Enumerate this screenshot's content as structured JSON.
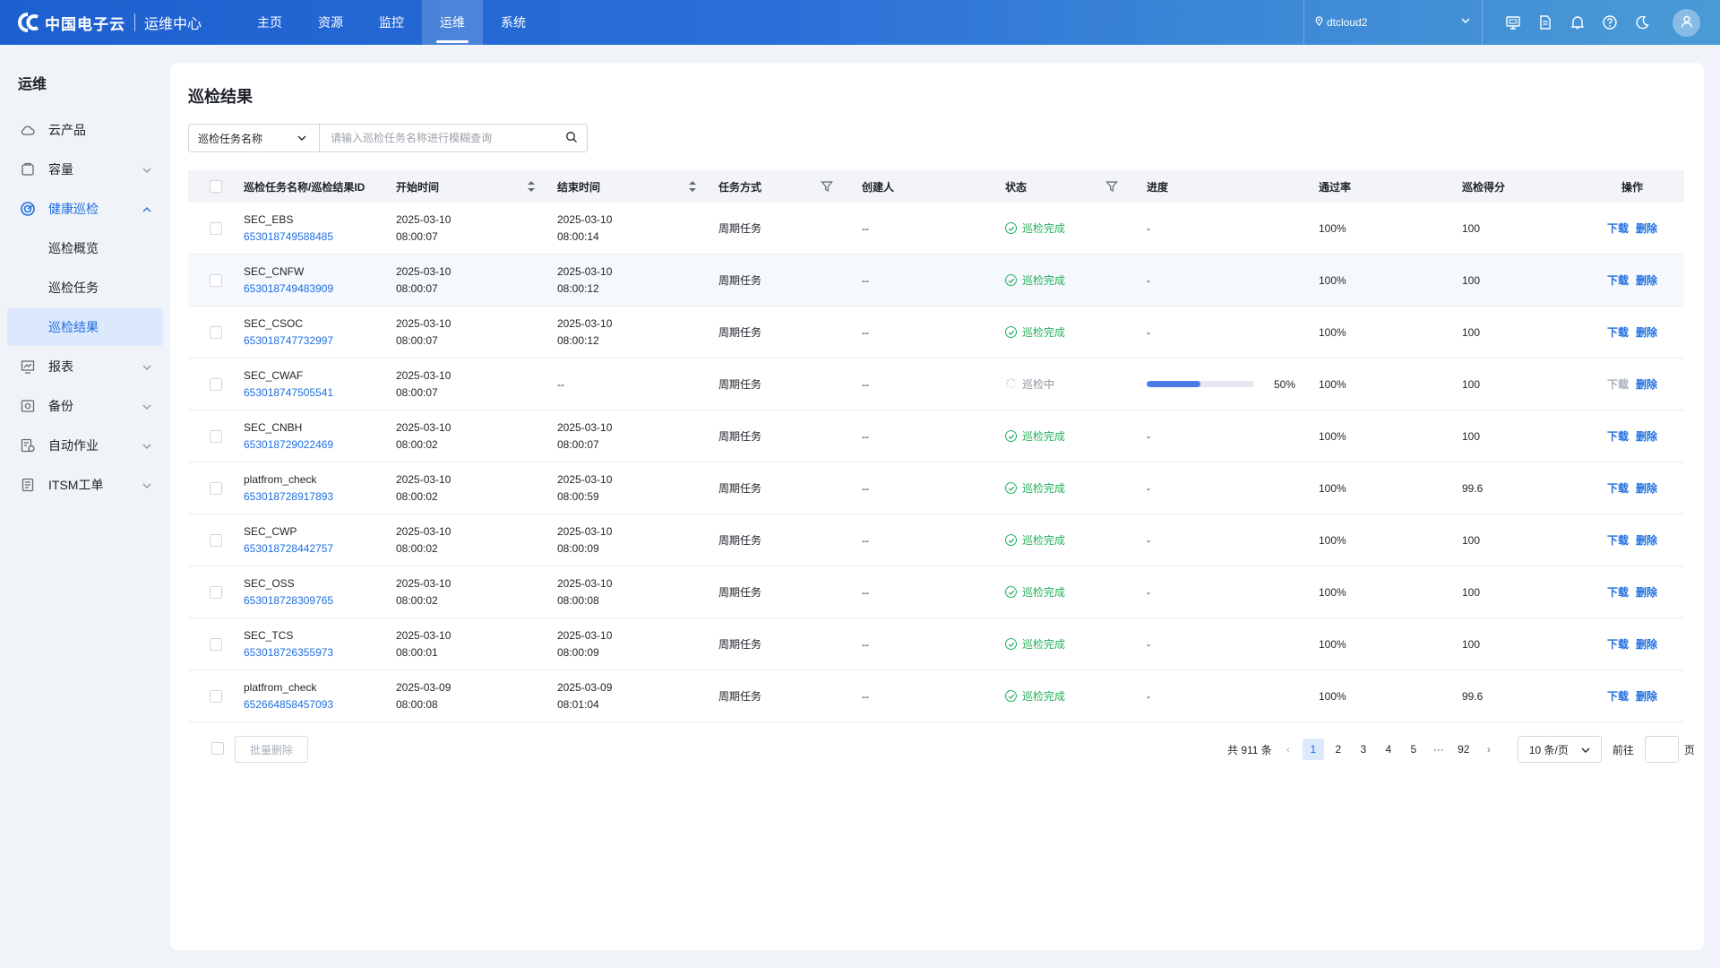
{
  "header": {
    "brand": "中国电子云",
    "subtitle": "运维中心",
    "nav": [
      "主页",
      "资源",
      "监控",
      "运维",
      "系统"
    ],
    "active_nav": 3,
    "region": "dtcloud2"
  },
  "sidebar": {
    "title": "运维",
    "items": [
      {
        "label": "云产品",
        "icon": "cloud-icon",
        "chevron": false
      },
      {
        "label": "容量",
        "icon": "capacity-icon",
        "chevron": true
      },
      {
        "label": "健康巡检",
        "icon": "inspection-icon",
        "chevron": true,
        "open": true
      },
      {
        "label": "报表",
        "icon": "report-icon",
        "chevron": true
      },
      {
        "label": "备份",
        "icon": "backup-icon",
        "chevron": true
      },
      {
        "label": "自动作业",
        "icon": "automation-icon",
        "chevron": true
      },
      {
        "label": "ITSM工单",
        "icon": "ticket-icon",
        "chevron": true
      }
    ],
    "subitems": [
      "巡检概览",
      "巡检任务",
      "巡检结果"
    ],
    "active_sub": 2
  },
  "page": {
    "title": "巡检结果",
    "search_field": "巡检任务名称",
    "search_placeholder": "请输入巡检任务名称进行模糊查询"
  },
  "table": {
    "columns": [
      "巡检任务名称/巡检结果ID",
      "开始时间",
      "结束时间",
      "任务方式",
      "创建人",
      "状态",
      "进度",
      "通过率",
      "巡检得分",
      "操作"
    ],
    "rows": [
      {
        "name": "SEC_EBS",
        "id": "653018749588485",
        "start_date": "2025-03-10",
        "start_time": "08:00:07",
        "end_date": "2025-03-10",
        "end_time": "08:00:14",
        "mode": "周期任务",
        "creator": "--",
        "status": "巡检完成",
        "running": false,
        "progress": "-",
        "pass_rate": "100%",
        "score": "100"
      },
      {
        "name": "SEC_CNFW",
        "id": "653018749483909",
        "start_date": "2025-03-10",
        "start_time": "08:00:07",
        "end_date": "2025-03-10",
        "end_time": "08:00:12",
        "mode": "周期任务",
        "creator": "--",
        "status": "巡检完成",
        "running": false,
        "progress": "-",
        "pass_rate": "100%",
        "score": "100"
      },
      {
        "name": "SEC_CSOC",
        "id": "653018747732997",
        "start_date": "2025-03-10",
        "start_time": "08:00:07",
        "end_date": "2025-03-10",
        "end_time": "08:00:12",
        "mode": "周期任务",
        "creator": "--",
        "status": "巡检完成",
        "running": false,
        "progress": "-",
        "pass_rate": "100%",
        "score": "100"
      },
      {
        "name": "SEC_CWAF",
        "id": "653018747505541",
        "start_date": "2025-03-10",
        "start_time": "08:00:07",
        "end_date": "--",
        "end_time": "",
        "mode": "周期任务",
        "creator": "--",
        "status": "巡检中",
        "running": true,
        "progress": "50%",
        "progress_value": 50,
        "pass_rate": "100%",
        "score": "100"
      },
      {
        "name": "SEC_CNBH",
        "id": "653018729022469",
        "start_date": "2025-03-10",
        "start_time": "08:00:02",
        "end_date": "2025-03-10",
        "end_time": "08:00:07",
        "mode": "周期任务",
        "creator": "--",
        "status": "巡检完成",
        "running": false,
        "progress": "-",
        "pass_rate": "100%",
        "score": "100"
      },
      {
        "name": "platfrom_check",
        "id": "653018728917893",
        "start_date": "2025-03-10",
        "start_time": "08:00:02",
        "end_date": "2025-03-10",
        "end_time": "08:00:59",
        "mode": "周期任务",
        "creator": "--",
        "status": "巡检完成",
        "running": false,
        "progress": "-",
        "pass_rate": "100%",
        "score": "99.6"
      },
      {
        "name": "SEC_CWP",
        "id": "653018728442757",
        "start_date": "2025-03-10",
        "start_time": "08:00:02",
        "end_date": "2025-03-10",
        "end_time": "08:00:09",
        "mode": "周期任务",
        "creator": "--",
        "status": "巡检完成",
        "running": false,
        "progress": "-",
        "pass_rate": "100%",
        "score": "100"
      },
      {
        "name": "SEC_OSS",
        "id": "653018728309765",
        "start_date": "2025-03-10",
        "start_time": "08:00:02",
        "end_date": "2025-03-10",
        "end_time": "08:00:08",
        "mode": "周期任务",
        "creator": "--",
        "status": "巡检完成",
        "running": false,
        "progress": "-",
        "pass_rate": "100%",
        "score": "100"
      },
      {
        "name": "SEC_TCS",
        "id": "653018726355973",
        "start_date": "2025-03-10",
        "start_time": "08:00:01",
        "end_date": "2025-03-10",
        "end_time": "08:00:09",
        "mode": "周期任务",
        "creator": "--",
        "status": "巡检完成",
        "running": false,
        "progress": "-",
        "pass_rate": "100%",
        "score": "100"
      },
      {
        "name": "platfrom_check",
        "id": "652664858457093",
        "start_date": "2025-03-09",
        "start_time": "08:00:08",
        "end_date": "2025-03-09",
        "end_time": "08:01:04",
        "mode": "周期任务",
        "creator": "--",
        "status": "巡检完成",
        "running": false,
        "progress": "-",
        "pass_rate": "100%",
        "score": "99.6"
      }
    ],
    "actions": [
      "下载",
      "删除"
    ]
  },
  "footer": {
    "batch_delete": "批量删除",
    "total": "共 911 条",
    "pages": [
      "1",
      "2",
      "3",
      "4",
      "5",
      "···",
      "92"
    ],
    "active_page": "1",
    "prev": "‹",
    "next": "›",
    "page_size": "10 条/页",
    "goto": "前往",
    "page_unit": "页"
  },
  "colors": {
    "primary": "#1e6fe0",
    "success": "#21b05b",
    "header_gradient_start": "#1d5fcf",
    "header_gradient_end": "#4a9ad6"
  }
}
